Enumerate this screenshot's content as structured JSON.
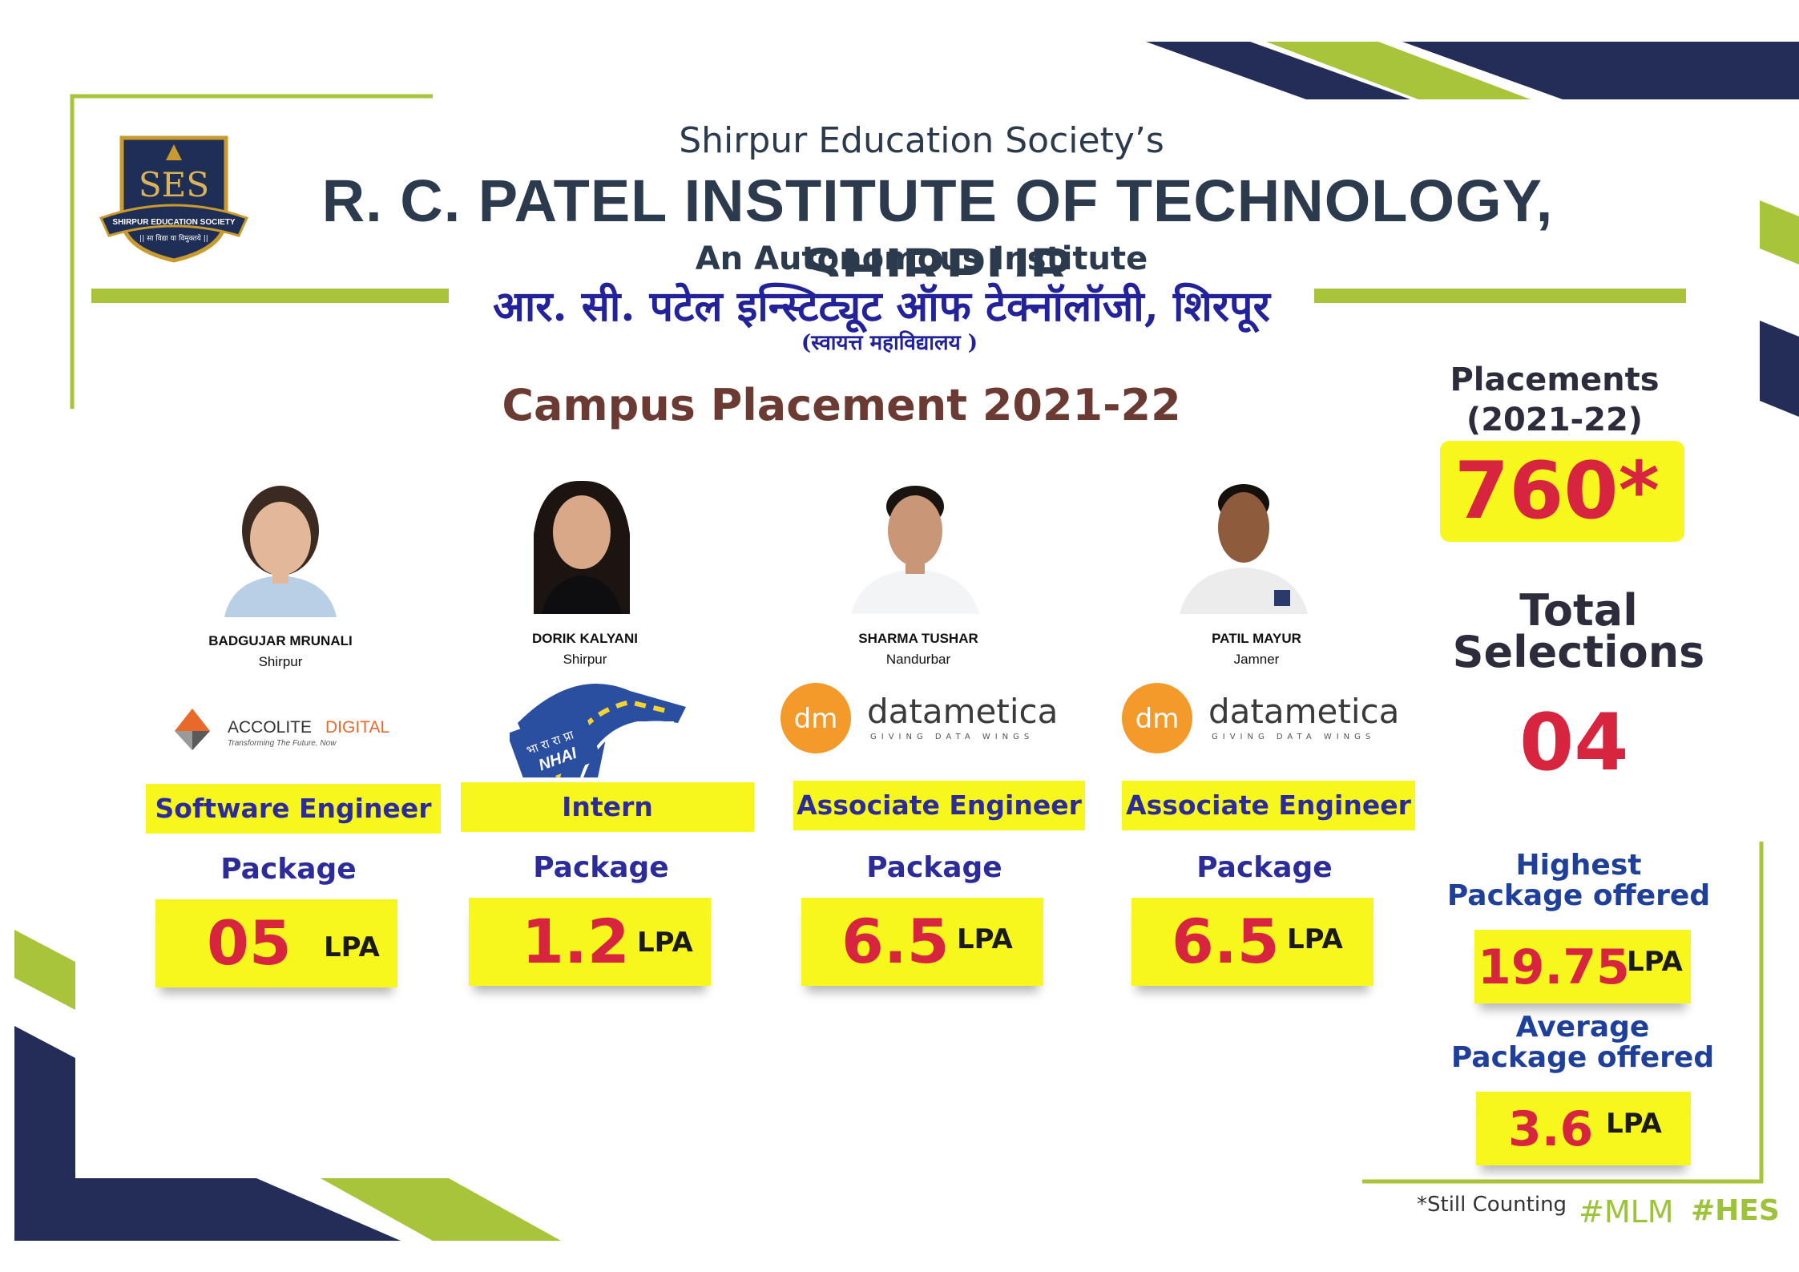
{
  "colors": {
    "navy": "#232d58",
    "lime": "#a8c43a",
    "yellow": "#f7f71e",
    "red": "#d7243f",
    "blue": "#2b2b9a",
    "brown": "#6b3a32"
  },
  "header": {
    "logo_text": "SES",
    "logo_ring_text": "SHIRPUR EDUCATION SOCIETY",
    "logo_motto": "|| सा विद्या या विमुक्तये ||",
    "society": "Shirpur Education Society’s",
    "institute": "R. C. PATEL INSTITUTE OF TECHNOLOGY, SHIRPUR",
    "autonomous": "An Autonomous Institute",
    "hindi_name": "आर. सी. पटेल इन्स्टिट्यूट ऑफ टेक्नॉलॉजी, शिरपूर",
    "hindi_sub": "(स्वायत्त महाविद्यालय )"
  },
  "title": "Campus Placement 2021-22",
  "students": [
    {
      "name": "BADGUJAR MRUNALI",
      "city": "Shirpur",
      "company": "accolite",
      "company_text": "ACCOLITE",
      "company_text2": "DIGITAL",
      "company_tagline": "Transforming The Future, Now",
      "role": "Software Engineer",
      "package_label": "Package",
      "package": "05",
      "unit": "LPA"
    },
    {
      "name": "DORIK KALYANI",
      "city": "Shirpur",
      "company": "nhai",
      "company_text": "NHAI",
      "company_text2": "भा रा रा प्रा",
      "company_tagline": "",
      "role": "Intern",
      "package_label": "Package",
      "package": "1.2",
      "unit": "LPA"
    },
    {
      "name": "SHARMA TUSHAR",
      "city": "Nandurbar",
      "company": "datametica",
      "company_text": "datametica",
      "company_text2": "dm",
      "company_tagline": "GIVING DATA WINGS",
      "role": "Associate Engineer",
      "package_label": "Package",
      "package": "6.5",
      "unit": "LPA"
    },
    {
      "name": "PATIL MAYUR",
      "city": "Jamner",
      "company": "datametica",
      "company_text": "datametica",
      "company_text2": "dm",
      "company_tagline": "GIVING DATA WINGS",
      "role": "Associate Engineer",
      "package_label": "Package",
      "package": "6.5",
      "unit": "LPA"
    }
  ],
  "sidebar": {
    "placements_title": "Placements",
    "placements_year": "(2021-22)",
    "placements_count": "760*",
    "total_title_1": "Total",
    "total_title_2": "Selections",
    "total_count": "04",
    "highest_title_1": "Highest",
    "highest_title_2": "Package offered",
    "highest_value": "19.75",
    "highest_unit": "LPA",
    "average_title_1": "Average",
    "average_title_2": "Package offered",
    "average_value": "3.6",
    "average_unit": "LPA"
  },
  "footer": {
    "note": "*Still Counting",
    "tag1": "#MLM",
    "tag2": "#HES"
  }
}
